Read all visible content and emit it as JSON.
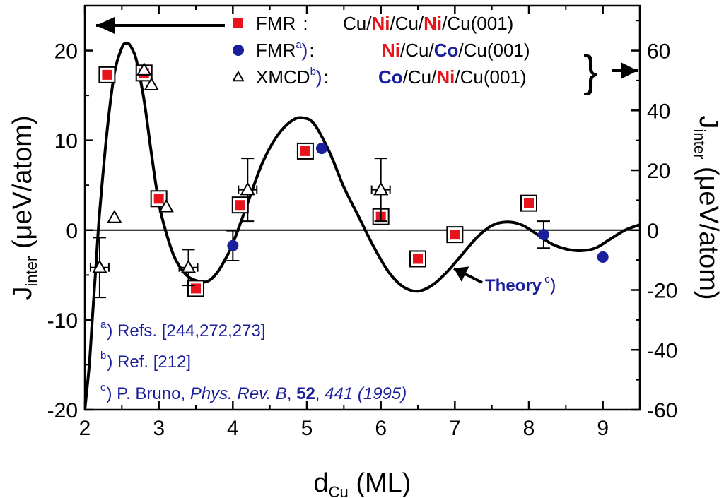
{
  "chart_data": {
    "type": "scatter",
    "xlabel": "d",
    "xlabel_sub": "Cu",
    "xlabel_unit": "(ML)",
    "ylabel": "J",
    "ylabel_sub": "inter",
    "ylabel_unit": "(μeV/atom)",
    "y2label": "J",
    "y2label_sub": "inter",
    "y2label_unit": "(μeV/atom)",
    "xlim": [
      2,
      9.5
    ],
    "ylim": [
      -20,
      25
    ],
    "y2lim": [
      -60,
      75
    ],
    "xticks": [
      2,
      3,
      4,
      5,
      6,
      7,
      8,
      9
    ],
    "yticks": [
      -20,
      -10,
      0,
      10,
      20
    ],
    "y2ticks": [
      -60,
      -40,
      -20,
      0,
      20,
      40,
      60
    ],
    "series": [
      {
        "name": "FMR",
        "axis": "left",
        "marker": "square",
        "color": "#e8141c",
        "points": [
          {
            "x": 2.3,
            "y": 17.3
          },
          {
            "x": 2.8,
            "y": 17.5
          },
          {
            "x": 3.0,
            "y": 3.5
          },
          {
            "x": 3.5,
            "y": -6.5
          },
          {
            "x": 4.1,
            "y": 2.8
          },
          {
            "x": 4.98,
            "y": 8.8
          },
          {
            "x": 6.0,
            "y": 1.5
          },
          {
            "x": 6.5,
            "y": -3.2
          },
          {
            "x": 7.0,
            "y": -0.5
          },
          {
            "x": 8.0,
            "y": 3.0
          }
        ]
      },
      {
        "name": "FMR",
        "axis": "right",
        "marker": "circle",
        "color": "#1a1f9c",
        "points": [
          {
            "x": 4.0,
            "y": -5.2,
            "err": 5
          },
          {
            "x": 5.2,
            "y": 27.3,
            "err": 0
          },
          {
            "x": 8.2,
            "y": -1.5,
            "err": 4.5
          },
          {
            "x": 9.0,
            "y": -9.0,
            "err": 0
          }
        ]
      },
      {
        "name": "XMCD",
        "axis": "right",
        "marker": "triangle",
        "color": "#000000",
        "points": [
          {
            "x": 2.2,
            "y": -12.5,
            "err": 10
          },
          {
            "x": 2.4,
            "y": 4.2,
            "err": 0
          },
          {
            "x": 2.8,
            "y": 53.5,
            "err": 0
          },
          {
            "x": 2.9,
            "y": 48.5,
            "err": 0
          },
          {
            "x": 3.1,
            "y": 7.8,
            "err": 0
          },
          {
            "x": 3.4,
            "y": -12.5,
            "err": 6
          },
          {
            "x": 4.2,
            "y": 13.5,
            "err": 10.5
          },
          {
            "x": 6.0,
            "y": 13.5,
            "err": 10.5
          }
        ]
      }
    ],
    "theory_curve": {
      "axis": "left",
      "x": [
        2.0,
        2.06,
        2.1,
        2.15,
        2.2,
        2.3,
        2.4,
        2.5,
        2.55,
        2.6,
        2.65,
        2.7,
        2.8,
        2.9,
        3.0,
        3.1,
        3.2,
        3.3,
        3.4,
        3.5,
        3.6,
        3.7,
        3.8,
        3.9,
        4.0,
        4.2,
        4.4,
        4.6,
        4.8,
        4.95,
        5.1,
        5.3,
        5.5,
        5.7,
        5.9,
        6.1,
        6.3,
        6.5,
        6.7,
        6.9,
        7.1,
        7.3,
        7.5,
        7.7,
        7.9,
        8.1,
        8.3,
        8.5,
        8.7,
        8.9,
        9.1,
        9.3,
        9.5
      ],
      "y": [
        -20,
        -15,
        -10,
        -4,
        2,
        11,
        17.5,
        20.3,
        20.8,
        20.7,
        20.0,
        18.8,
        14.5,
        8.5,
        3,
        -0.3,
        -2.8,
        -4.3,
        -5.2,
        -5.6,
        -5.8,
        -5.5,
        -4.6,
        -3.2,
        -1.5,
        3,
        7.5,
        10.5,
        12.2,
        12.5,
        11.8,
        8.8,
        4.8,
        1.5,
        -1.8,
        -4.6,
        -6.3,
        -6.8,
        -6.1,
        -4.6,
        -2.7,
        -0.8,
        0.5,
        0.9,
        0.6,
        -0.4,
        -1.5,
        -2.1,
        -2.3,
        -2.0,
        -1.0,
        0.0,
        0.6
      ]
    },
    "legend": {
      "entries": [
        {
          "marker": "square",
          "color": "#e8141c",
          "label": "FMR",
          "sup": "",
          "paren": "",
          "colon": ":",
          "sample": [
            [
              "Cu/",
              "k"
            ],
            [
              "Ni",
              "r"
            ],
            [
              "/Cu/",
              "k"
            ],
            [
              "Ni",
              "r"
            ],
            [
              "/Cu(001)",
              "k"
            ]
          ]
        },
        {
          "marker": "circle",
          "color": "#1a1f9c",
          "label": "FMR",
          "sup": "a",
          "paren": ")",
          "colon": ":",
          "sample": [
            [
              "Ni",
              "r"
            ],
            [
              "/Cu/",
              "k"
            ],
            [
              "Co",
              "b"
            ],
            [
              "/Cu(001)",
              "k"
            ]
          ]
        },
        {
          "marker": "triangle",
          "color": "#000000",
          "label": "XMCD",
          "sup": "b",
          "paren": ")",
          "colon": ":",
          "sample": [
            [
              "Co",
              "b"
            ],
            [
              "/Cu/",
              "k"
            ],
            [
              "Ni",
              "r"
            ],
            [
              "/Cu(001)",
              "k"
            ]
          ]
        }
      ],
      "brace": "}"
    },
    "annotations": {
      "theory_label": "Theory",
      "theory_sup": "c",
      "theory_paren": ")",
      "footnotes": [
        {
          "mark": "a",
          "paren": ")",
          "parts": [
            [
              "Refs. [244,272,273]",
              "n"
            ]
          ]
        },
        {
          "mark": "b",
          "paren": ")",
          "parts": [
            [
              "Ref.",
              "n"
            ],
            [
              "   [212]",
              "n"
            ]
          ]
        },
        {
          "mark": "c",
          "paren": ")",
          "parts": [
            [
              "P. Bruno, ",
              "n"
            ],
            [
              "Phys. Rev. B",
              "i"
            ],
            [
              ", ",
              "n"
            ],
            [
              "52",
              "b"
            ],
            [
              ", ",
              "n"
            ],
            [
              "441 (1995)",
              "i"
            ]
          ]
        }
      ]
    }
  }
}
